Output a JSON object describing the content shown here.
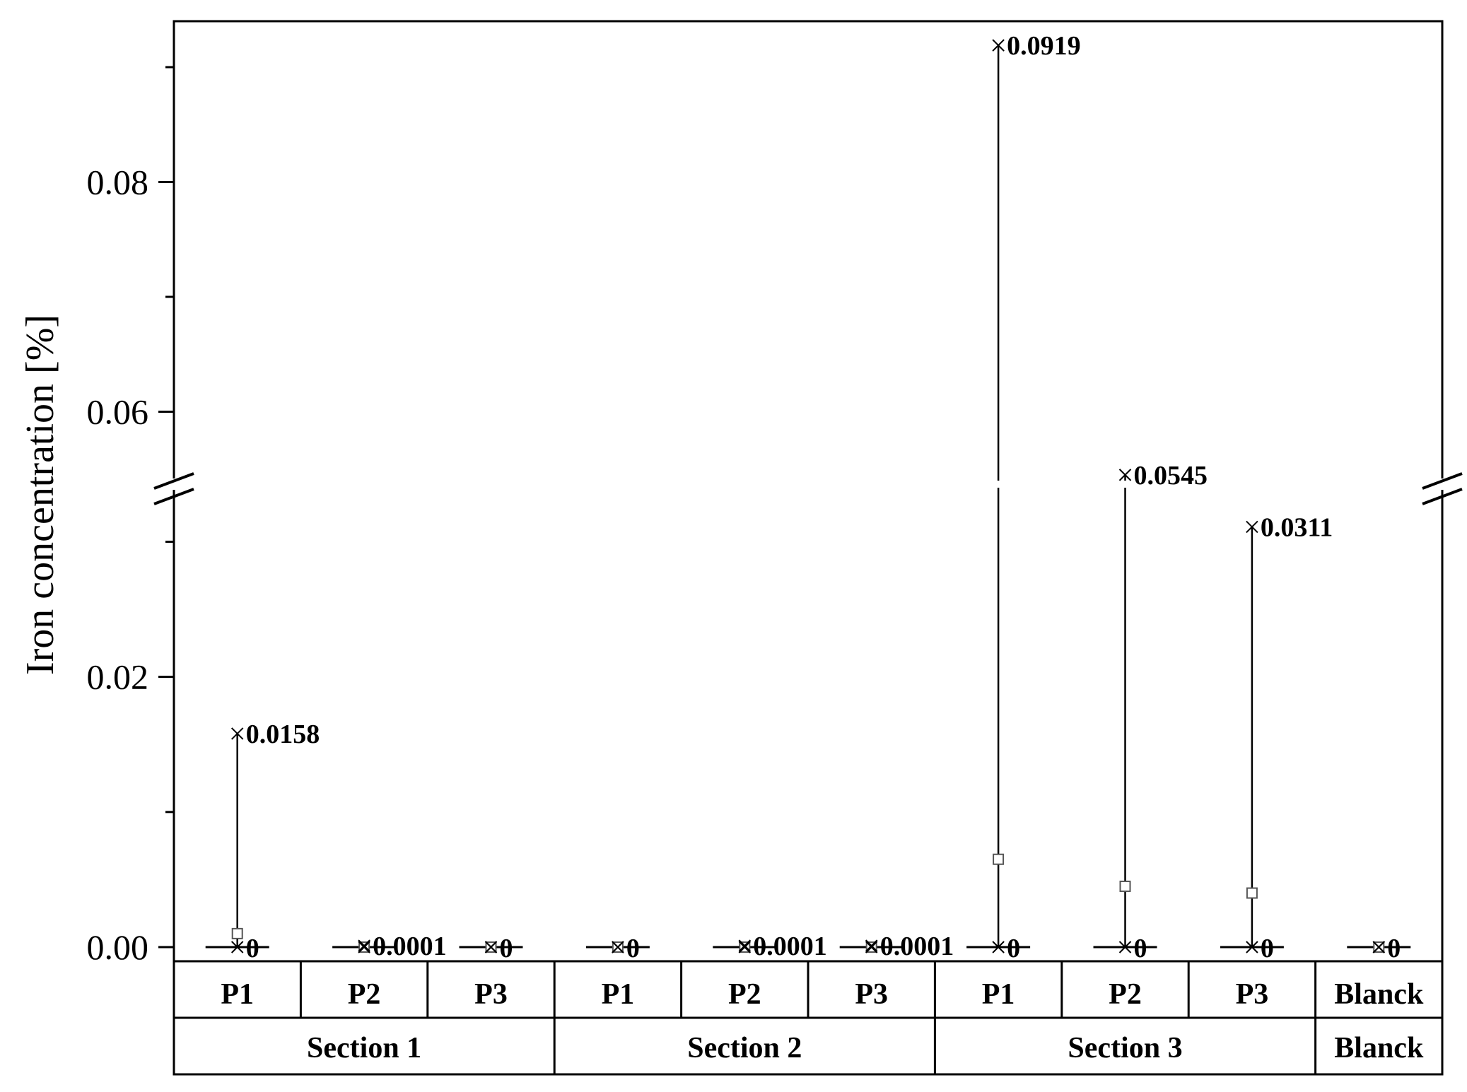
{
  "chart_data": {
    "type": "box",
    "ylabel": "Iron concentration [%]",
    "y_axis": {
      "break": [
        0.034,
        0.054
      ],
      "lower_range": [
        0,
        0.034
      ],
      "upper_range": [
        0.054,
        0.094
      ],
      "major_ticks": [
        0.0,
        0.02,
        0.06,
        0.08
      ],
      "tick_labels": [
        "0.00",
        "0.02",
        "0.06",
        "0.08"
      ]
    },
    "groups": [
      {
        "name": "Section 1",
        "categories": [
          "P1",
          "P2",
          "P3"
        ]
      },
      {
        "name": "Section 2",
        "categories": [
          "P1",
          "P2",
          "P3"
        ]
      },
      {
        "name": "Section 3",
        "categories": [
          "P1",
          "P2",
          "P3"
        ]
      },
      {
        "name": "Blanck",
        "categories": [
          "Blanck"
        ]
      }
    ],
    "points": [
      {
        "group": "Section 1",
        "category": "P1",
        "max": 0.0158,
        "min": 0,
        "mean": 0.001,
        "max_label": "0.0158",
        "min_label": "0"
      },
      {
        "group": "Section 1",
        "category": "P2",
        "max": 0.0001,
        "min": 0,
        "mean": 0,
        "max_label": "0.0001",
        "min_label": ""
      },
      {
        "group": "Section 1",
        "category": "P3",
        "max": 0,
        "min": 0,
        "mean": 0,
        "max_label": "",
        "min_label": "0"
      },
      {
        "group": "Section 2",
        "category": "P1",
        "max": 0,
        "min": 0,
        "mean": 0,
        "max_label": "",
        "min_label": "0"
      },
      {
        "group": "Section 2",
        "category": "P2",
        "max": 0.0001,
        "min": 0,
        "mean": 0,
        "max_label": "0.0001",
        "min_label": ""
      },
      {
        "group": "Section 2",
        "category": "P3",
        "max": 0.0001,
        "min": 0,
        "mean": 0,
        "max_label": "0.0001",
        "min_label": ""
      },
      {
        "group": "Section 3",
        "category": "P1",
        "max": 0.0919,
        "min": 0,
        "mean": 0.0065,
        "max_label": "0.0919",
        "min_label": "0"
      },
      {
        "group": "Section 3",
        "category": "P2",
        "max": 0.0545,
        "min": 0,
        "mean": 0.0045,
        "max_label": "0.0545",
        "min_label": "0"
      },
      {
        "group": "Section 3",
        "category": "P3",
        "max": 0.0311,
        "min": 0,
        "mean": 0.004,
        "max_label": "0.0311",
        "min_label": "0"
      },
      {
        "group": "Blanck",
        "category": "Blanck",
        "max": 0,
        "min": 0,
        "mean": 0,
        "max_label": "",
        "min_label": "0"
      }
    ]
  }
}
